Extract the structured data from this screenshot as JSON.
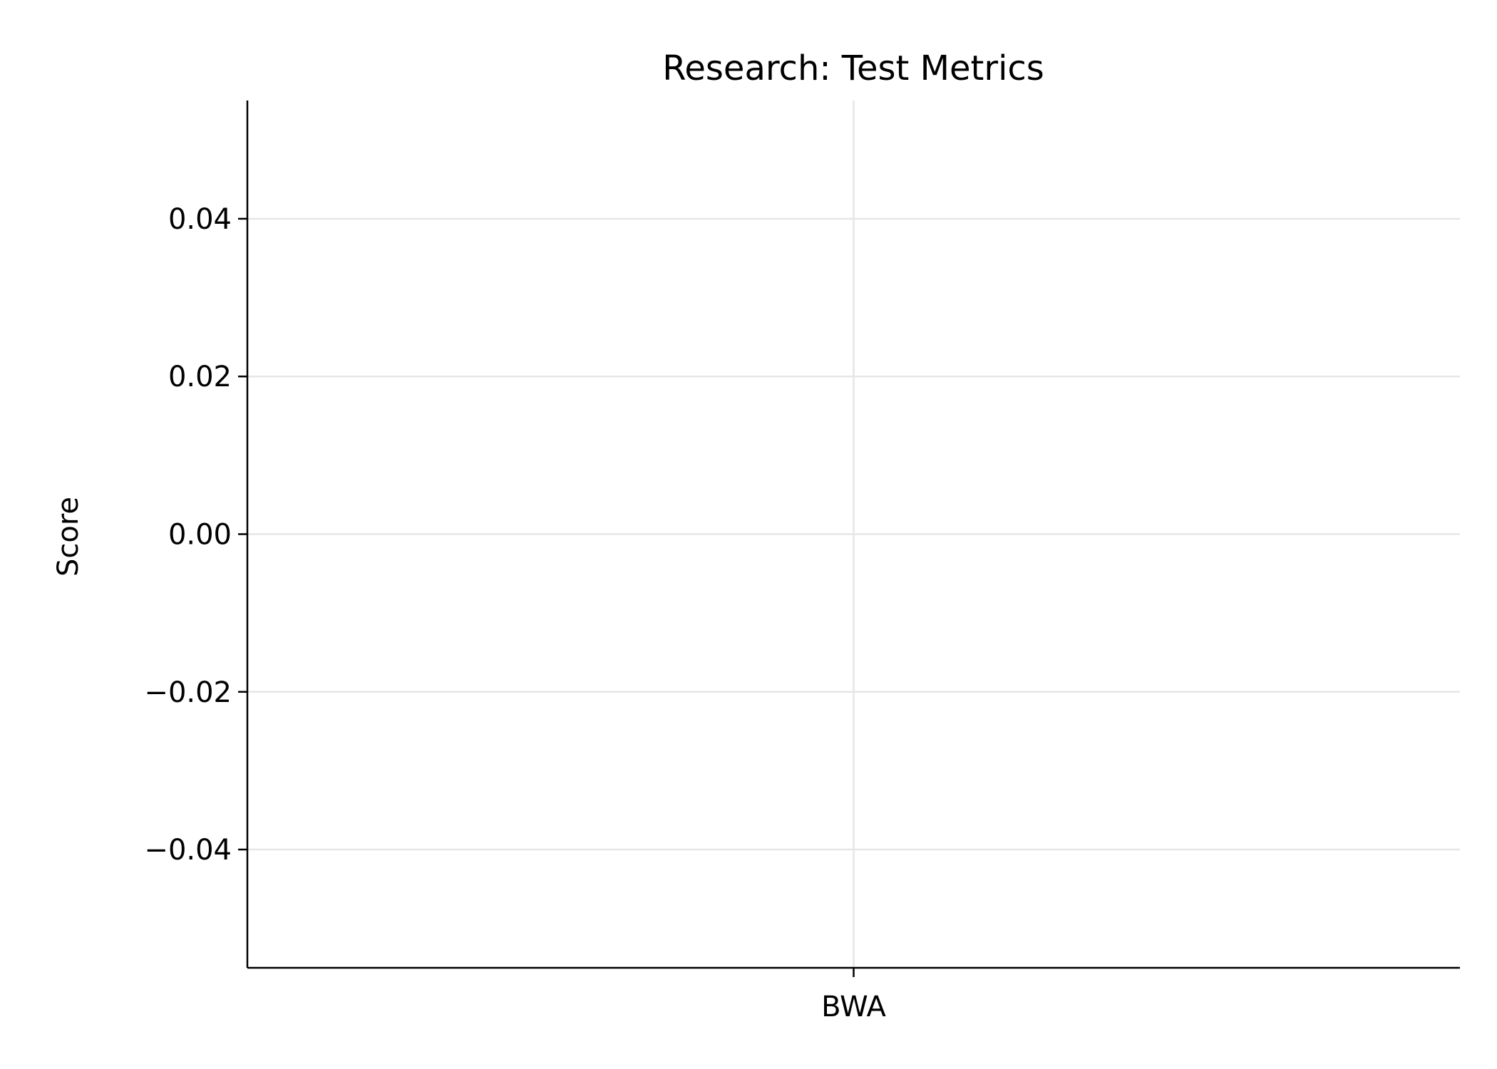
{
  "chart_data": {
    "type": "bar",
    "title": "Research: Test Metrics",
    "xlabel": "",
    "ylabel": "Score",
    "categories": [
      "BWA"
    ],
    "series": [
      {
        "values": [
          0
        ]
      }
    ],
    "ylim": [
      -0.055,
      0.055
    ],
    "yticks": [
      -0.04,
      -0.02,
      0.0,
      0.02,
      0.04
    ],
    "ytick_labels": [
      "−0.04",
      "−0.02",
      "0.00",
      "0.02",
      "0.04"
    ],
    "grid": true,
    "legend": "none",
    "colors": {
      "axis": "#000000",
      "grid": "#e6e6e6",
      "background": "#ffffff"
    }
  }
}
